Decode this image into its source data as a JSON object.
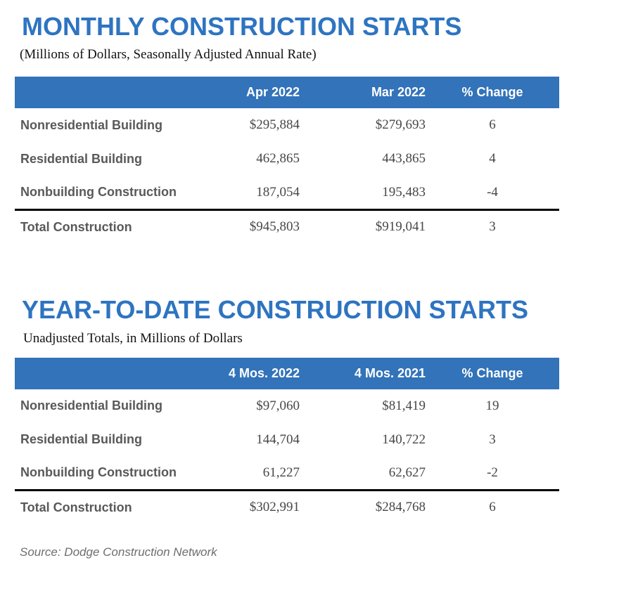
{
  "colors": {
    "title_blue": "#2e74c1",
    "header_bar_blue": "#3273b9",
    "header_text": "#ffffff",
    "row_label_gray": "#595959",
    "value_gray": "#474747",
    "total_divider": "#000000",
    "source_gray": "#6e6e6e"
  },
  "chart_data": [
    {
      "type": "table",
      "title": "MONTHLY CONSTRUCTION STARTS",
      "subtitle": "(Millions of Dollars, Seasonally Adjusted Annual Rate)",
      "columns": [
        "",
        "Apr 2022",
        "Mar 2022",
        "% Change"
      ],
      "rows": [
        [
          "Nonresidential Building",
          "$295,884",
          "$279,693",
          "6"
        ],
        [
          "Residential Building",
          "462,865",
          "443,865",
          "4"
        ],
        [
          "Nonbuilding Construction",
          "187,054",
          "195,483",
          "-4"
        ],
        [
          "Total Construction",
          "$945,803",
          "$919,041",
          "3"
        ]
      ],
      "layout": {
        "header_background": "#3273b9",
        "total_row_divider": true,
        "gridlines": false
      }
    },
    {
      "type": "table",
      "title": "YEAR-TO-DATE CONSTRUCTION STARTS",
      "subtitle": "Unadjusted Totals, in Millions of Dollars",
      "columns": [
        "",
        "4 Mos. 2022",
        "4 Mos. 2021",
        "% Change"
      ],
      "rows": [
        [
          "Nonresidential Building",
          "$97,060",
          "$81,419",
          "19"
        ],
        [
          "Residential Building",
          "144,704",
          "140,722",
          "3"
        ],
        [
          "Nonbuilding Construction",
          "61,227",
          "62,627",
          "-2"
        ],
        [
          "Total Construction",
          "$302,991",
          "$284,768",
          "6"
        ]
      ],
      "layout": {
        "header_background": "#3273b9",
        "total_row_divider": true,
        "gridlines": false
      }
    }
  ],
  "source_note": "Source: Dodge Construction Network"
}
